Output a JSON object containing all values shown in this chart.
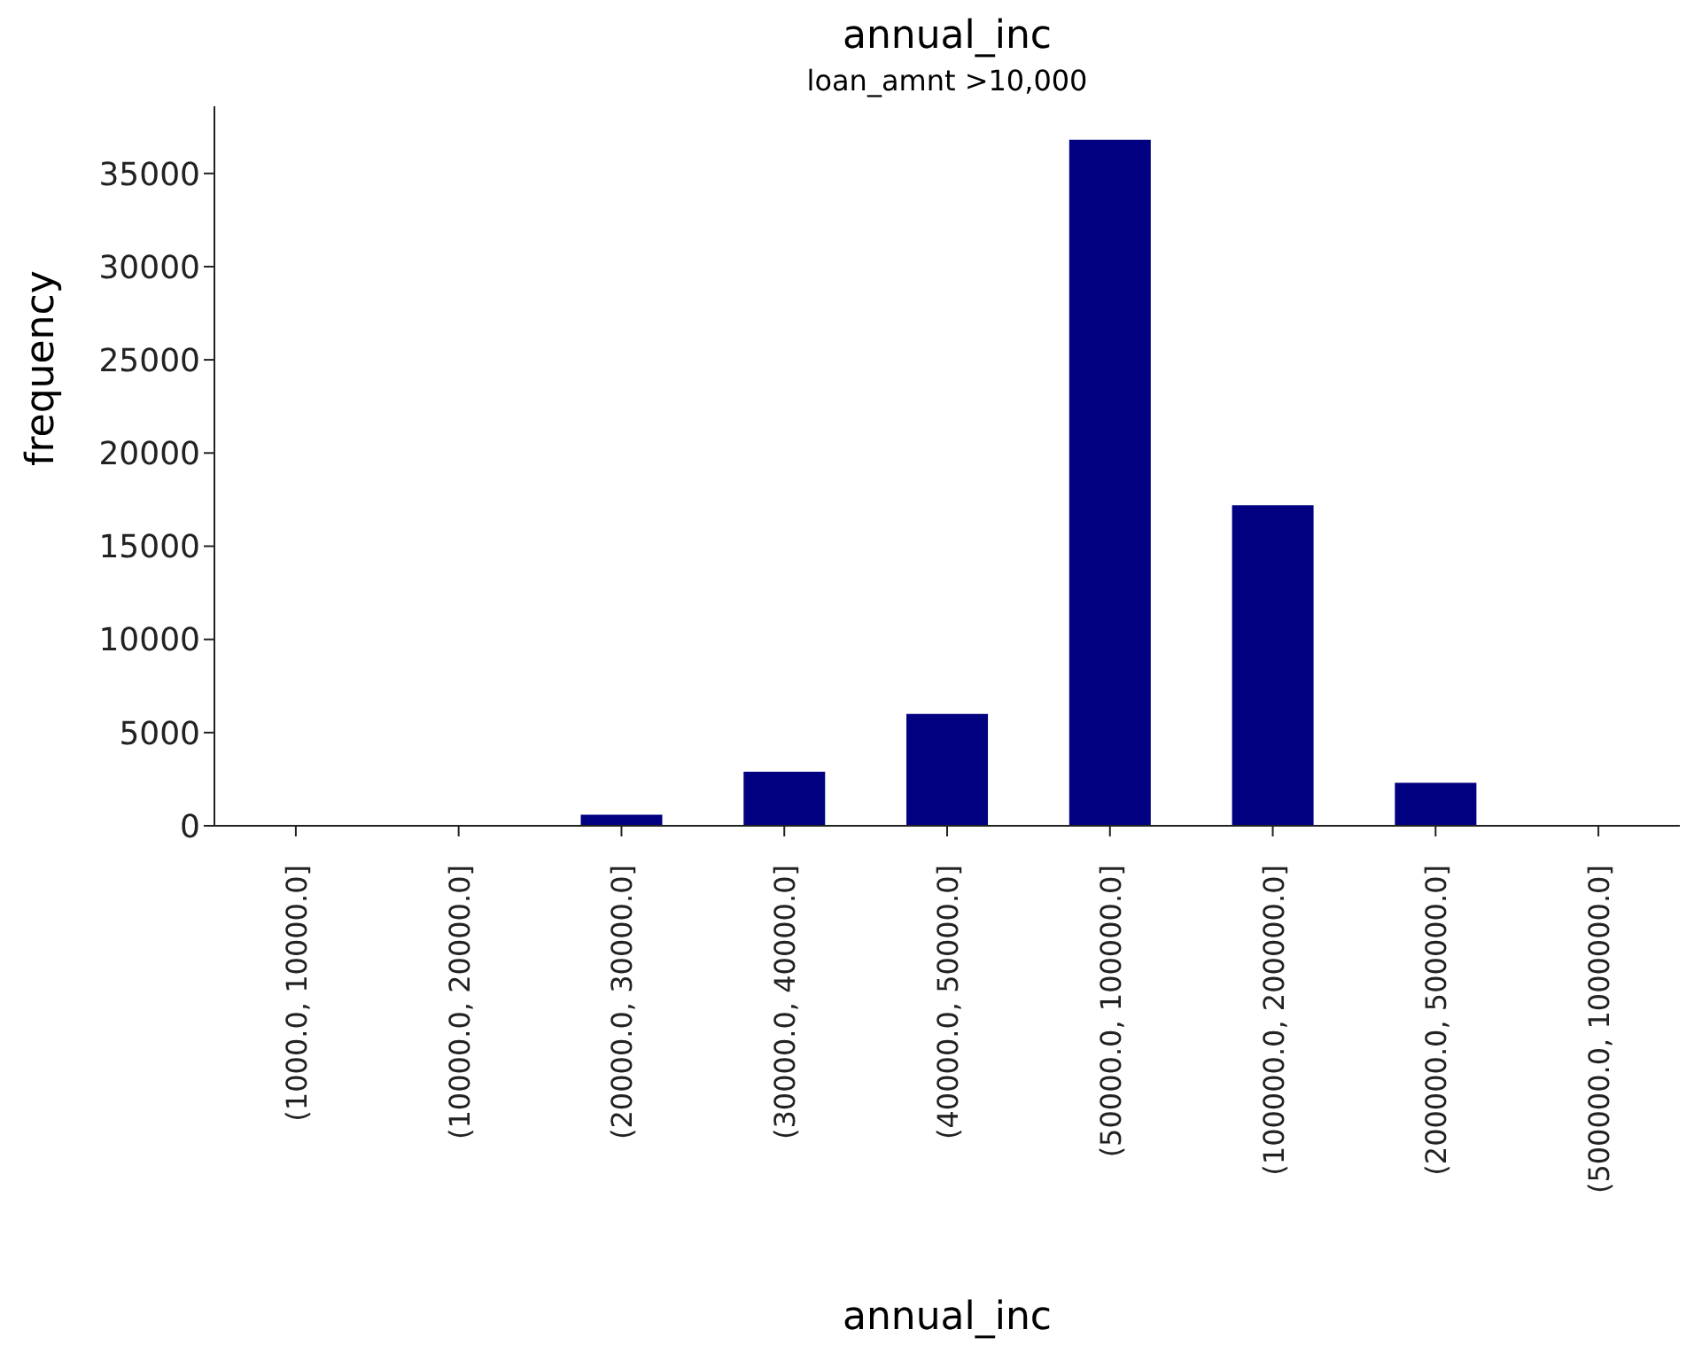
{
  "chart_data": {
    "type": "bar",
    "title": "annual_inc",
    "subtitle": "loan_amnt >10,000",
    "xlabel": "annual_inc",
    "ylabel": "frequency",
    "categories": [
      "(1000.0, 10000.0]",
      "(10000.0, 20000.0]",
      "(20000.0, 30000.0]",
      "(30000.0, 40000.0]",
      "(40000.0, 50000.0]",
      "(50000.0, 100000.0]",
      "(100000.0, 200000.0]",
      "(200000.0, 500000.0]",
      "(500000.0, 1000000.0]"
    ],
    "values": [
      0,
      0,
      600,
      2900,
      6000,
      36800,
      17200,
      2300,
      0
    ],
    "color": "#000080",
    "ylim": [
      0,
      38600
    ],
    "yticks": [
      0,
      5000,
      10000,
      15000,
      20000,
      25000,
      30000,
      35000
    ],
    "grid": false,
    "legend": false
  }
}
